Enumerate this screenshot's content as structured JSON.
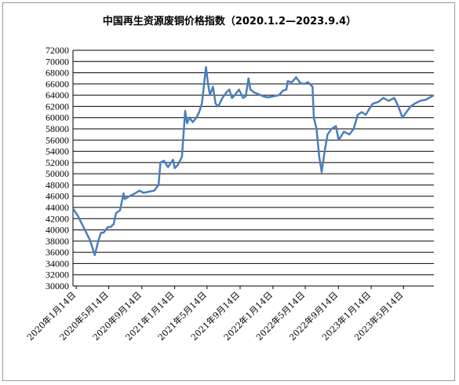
{
  "chart_data": {
    "type": "line",
    "title": "中国再生资源废铜价格指数（2020.1.2—2023.9.4）",
    "xlabel": "",
    "ylabel": "",
    "ylim": [
      30000,
      72000
    ],
    "y_ticks": [
      30000,
      32000,
      34000,
      36000,
      38000,
      40000,
      42000,
      44000,
      46000,
      48000,
      50000,
      52000,
      54000,
      56000,
      58000,
      60000,
      62000,
      64000,
      66000,
      68000,
      70000,
      72000
    ],
    "x_tick_labels": [
      "2020年1月14日",
      "2020年5月14日",
      "2020年9月14日",
      "2021年1月14日",
      "2021年5月14日",
      "2021年9月14日",
      "2022年1月14日",
      "2022年5月14日",
      "2022年9月14日",
      "2023年1月14日",
      "2023年5月14日"
    ],
    "x_tick_dates": [
      "2020-01-14",
      "2020-05-14",
      "2020-09-14",
      "2021-01-14",
      "2021-05-14",
      "2021-09-14",
      "2022-01-14",
      "2022-05-14",
      "2022-09-14",
      "2023-01-14",
      "2023-05-14"
    ],
    "x_range": [
      "2020-01-02",
      "2023-09-04"
    ],
    "grid": "horizontal",
    "legend": "none",
    "line_color": "#4a7ebb",
    "points": [
      [
        "2020-01-02",
        43800
      ],
      [
        "2020-01-20",
        42500
      ],
      [
        "2020-02-10",
        40500
      ],
      [
        "2020-03-05",
        38200
      ],
      [
        "2020-03-23",
        35500
      ],
      [
        "2020-04-05",
        38000
      ],
      [
        "2020-04-15",
        39500
      ],
      [
        "2020-04-25",
        39500
      ],
      [
        "2020-05-10",
        40500
      ],
      [
        "2020-05-20",
        40500
      ],
      [
        "2020-06-01",
        41000
      ],
      [
        "2020-06-10",
        43000
      ],
      [
        "2020-06-25",
        43500
      ],
      [
        "2020-07-08",
        46500
      ],
      [
        "2020-07-12",
        45500
      ],
      [
        "2020-07-30",
        46000
      ],
      [
        "2020-08-20",
        46500
      ],
      [
        "2020-09-05",
        47000
      ],
      [
        "2020-09-20",
        46600
      ],
      [
        "2020-10-10",
        46800
      ],
      [
        "2020-10-30",
        47000
      ],
      [
        "2020-11-15",
        48000
      ],
      [
        "2020-11-22",
        52000
      ],
      [
        "2020-12-05",
        52300
      ],
      [
        "2020-12-20",
        51200
      ],
      [
        "2021-01-08",
        52500
      ],
      [
        "2021-01-14",
        51000
      ],
      [
        "2021-01-25",
        51500
      ],
      [
        "2021-02-10",
        53000
      ],
      [
        "2021-02-22",
        61200
      ],
      [
        "2021-03-01",
        59000
      ],
      [
        "2021-03-10",
        60000
      ],
      [
        "2021-03-22",
        59200
      ],
      [
        "2021-04-05",
        60000
      ],
      [
        "2021-04-15",
        61000
      ],
      [
        "2021-04-25",
        62500
      ],
      [
        "2021-05-10",
        69000
      ],
      [
        "2021-05-18",
        66000
      ],
      [
        "2021-05-25",
        64000
      ],
      [
        "2021-06-05",
        65500
      ],
      [
        "2021-06-15",
        62500
      ],
      [
        "2021-06-25",
        62000
      ],
      [
        "2021-07-10",
        63500
      ],
      [
        "2021-07-25",
        64500
      ],
      [
        "2021-08-05",
        65000
      ],
      [
        "2021-08-15",
        63500
      ],
      [
        "2021-08-25",
        64000
      ],
      [
        "2021-09-10",
        65000
      ],
      [
        "2021-09-25",
        63500
      ],
      [
        "2021-10-05",
        63800
      ],
      [
        "2021-10-15",
        67000
      ],
      [
        "2021-10-22",
        65000
      ],
      [
        "2021-11-05",
        64500
      ],
      [
        "2021-11-20",
        64200
      ],
      [
        "2021-12-10",
        63800
      ],
      [
        "2021-12-25",
        63600
      ],
      [
        "2022-01-15",
        63800
      ],
      [
        "2022-02-05",
        64000
      ],
      [
        "2022-02-20",
        64800
      ],
      [
        "2022-03-05",
        65000
      ],
      [
        "2022-03-10",
        66500
      ],
      [
        "2022-03-25",
        66300
      ],
      [
        "2022-04-10",
        67200
      ],
      [
        "2022-04-25",
        66200
      ],
      [
        "2022-05-10",
        66000
      ],
      [
        "2022-05-25",
        66300
      ],
      [
        "2022-06-10",
        65500
      ],
      [
        "2022-06-15",
        60000
      ],
      [
        "2022-06-25",
        58000
      ],
      [
        "2022-07-05",
        53000
      ],
      [
        "2022-07-14",
        50300
      ],
      [
        "2022-07-25",
        54000
      ],
      [
        "2022-08-05",
        57000
      ],
      [
        "2022-08-20",
        58000
      ],
      [
        "2022-09-05",
        58500
      ],
      [
        "2022-09-15",
        56000
      ],
      [
        "2022-10-05",
        57500
      ],
      [
        "2022-10-25",
        57000
      ],
      [
        "2022-11-10",
        58000
      ],
      [
        "2022-11-25",
        60500
      ],
      [
        "2022-12-10",
        61000
      ],
      [
        "2022-12-25",
        60500
      ],
      [
        "2023-01-10",
        61800
      ],
      [
        "2023-01-20",
        62500
      ],
      [
        "2023-02-10",
        62800
      ],
      [
        "2023-02-28",
        63500
      ],
      [
        "2023-03-20",
        63000
      ],
      [
        "2023-04-10",
        63500
      ],
      [
        "2023-04-25",
        62000
      ],
      [
        "2023-05-10",
        60000
      ],
      [
        "2023-05-25",
        61000
      ],
      [
        "2023-06-10",
        62000
      ],
      [
        "2023-06-25",
        62500
      ],
      [
        "2023-07-15",
        63000
      ],
      [
        "2023-08-05",
        63200
      ],
      [
        "2023-08-20",
        63600
      ],
      [
        "2023-09-04",
        64000
      ]
    ]
  }
}
